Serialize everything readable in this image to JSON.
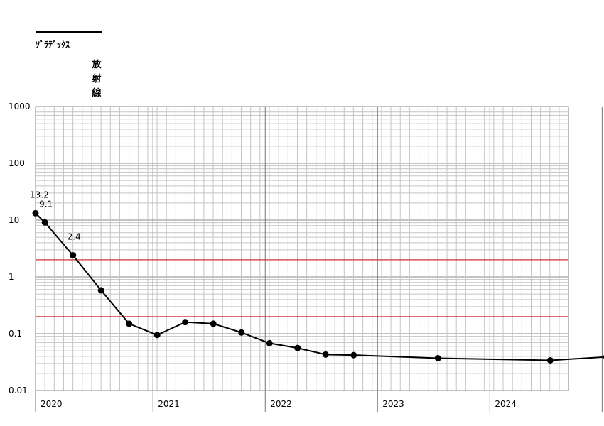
{
  "chart_data": {
    "type": "line",
    "yscale": "log",
    "ylim": [
      0.01,
      1000
    ],
    "ytick_labels": [
      "1000",
      "100",
      "10",
      "1",
      "0.1",
      "0.01"
    ],
    "ylabel": "放射線",
    "xlabel": "",
    "title": "",
    "x_tick_labels": [
      "2020",
      "2021",
      "2022",
      "2023",
      "2024",
      "2025"
    ],
    "grid": true,
    "legend": {
      "position": "top-left",
      "entries": [
        "ｿﾞﾗﾃﾞｯｸｽ"
      ]
    },
    "series": [
      {
        "name": "ｿﾞﾗﾃﾞｯｸｽ",
        "color": "#000000",
        "x": [
          "2019-12",
          "2020-01",
          "2020-04",
          "2020-07",
          "2020-10",
          "2021-01",
          "2021-04",
          "2021-07",
          "2021-10",
          "2022-01",
          "2022-04",
          "2022-07",
          "2022-10",
          "2023-07",
          "2024-07",
          "2025-01"
        ],
        "y": [
          13.2,
          9.1,
          2.4,
          0.58,
          0.15,
          0.095,
          0.16,
          0.15,
          0.105,
          0.068,
          0.056,
          0.043,
          0.042,
          0.037,
          0.034,
          0.039
        ],
        "data_labels": [
          "13.2",
          "9.1",
          "2.4",
          "",
          "",
          "",
          "",
          "",
          "",
          "",
          "",
          "",
          "",
          "",
          "",
          ""
        ]
      }
    ],
    "reference_lines": [
      {
        "y": 2,
        "color": "#cc2222"
      },
      {
        "y": 0.2,
        "color": "#cc2222"
      }
    ]
  }
}
